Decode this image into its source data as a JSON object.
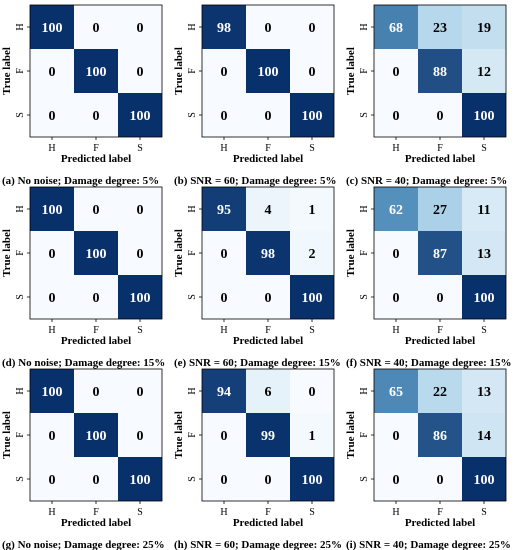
{
  "chart_data": [
    {
      "type": "heatmap",
      "caption": "(a) No noise; Damage degree: 5%",
      "xlabel": "Predicted label",
      "ylabel": "True label",
      "x_categories": [
        "H",
        "F",
        "S"
      ],
      "y_categories": [
        "H",
        "F",
        "S"
      ],
      "vlim": [
        0,
        100
      ],
      "values": [
        [
          100,
          0,
          0
        ],
        [
          0,
          100,
          0
        ],
        [
          0,
          0,
          100
        ]
      ]
    },
    {
      "type": "heatmap",
      "caption": "(b) SNR = 60; Damage degree: 5%",
      "xlabel": "Predicted label",
      "ylabel": "True label",
      "x_categories": [
        "H",
        "F",
        "S"
      ],
      "y_categories": [
        "H",
        "F",
        "S"
      ],
      "vlim": [
        0,
        100
      ],
      "values": [
        [
          98,
          0,
          0
        ],
        [
          0,
          100,
          0
        ],
        [
          0,
          0,
          100
        ]
      ]
    },
    {
      "type": "heatmap",
      "caption": "(c) SNR = 40; Damage degree: 5%",
      "xlabel": "Predicted label",
      "ylabel": "True label",
      "x_categories": [
        "H",
        "F",
        "S"
      ],
      "y_categories": [
        "H",
        "F",
        "S"
      ],
      "vlim": [
        0,
        100
      ],
      "values": [
        [
          68,
          23,
          19
        ],
        [
          0,
          88,
          12
        ],
        [
          0,
          0,
          100
        ]
      ]
    },
    {
      "type": "heatmap",
      "caption": "(d) No noise; Damage degree: 15%",
      "xlabel": "Predicted label",
      "ylabel": "True label",
      "x_categories": [
        "H",
        "F",
        "S"
      ],
      "y_categories": [
        "H",
        "F",
        "S"
      ],
      "vlim": [
        0,
        100
      ],
      "values": [
        [
          100,
          0,
          0
        ],
        [
          0,
          100,
          0
        ],
        [
          0,
          0,
          100
        ]
      ]
    },
    {
      "type": "heatmap",
      "caption": "(e) SNR = 60; Damage degree: 15%",
      "xlabel": "Predicted label",
      "ylabel": "True label",
      "x_categories": [
        "H",
        "F",
        "S"
      ],
      "y_categories": [
        "H",
        "F",
        "S"
      ],
      "vlim": [
        0,
        100
      ],
      "values": [
        [
          95,
          4,
          1
        ],
        [
          0,
          98,
          2
        ],
        [
          0,
          0,
          100
        ]
      ]
    },
    {
      "type": "heatmap",
      "caption": "(f) SNR = 40; Damage degree: 15%",
      "xlabel": "Predicted label",
      "ylabel": "True label",
      "x_categories": [
        "H",
        "F",
        "S"
      ],
      "y_categories": [
        "H",
        "F",
        "S"
      ],
      "vlim": [
        0,
        100
      ],
      "values": [
        [
          62,
          27,
          11
        ],
        [
          0,
          87,
          13
        ],
        [
          0,
          0,
          100
        ]
      ]
    },
    {
      "type": "heatmap",
      "caption": "(g) No noise; Damage degree: 25%",
      "xlabel": "Predicted label",
      "ylabel": "True label",
      "x_categories": [
        "H",
        "F",
        "S"
      ],
      "y_categories": [
        "H",
        "F",
        "S"
      ],
      "vlim": [
        0,
        100
      ],
      "values": [
        [
          100,
          0,
          0
        ],
        [
          0,
          100,
          0
        ],
        [
          0,
          0,
          100
        ]
      ]
    },
    {
      "type": "heatmap",
      "caption": "(h) SNR = 60; Damage degree: 25%",
      "xlabel": "Predicted label",
      "ylabel": "True label",
      "x_categories": [
        "H",
        "F",
        "S"
      ],
      "y_categories": [
        "H",
        "F",
        "S"
      ],
      "vlim": [
        0,
        100
      ],
      "values": [
        [
          94,
          6,
          0
        ],
        [
          0,
          99,
          1
        ],
        [
          0,
          0,
          100
        ]
      ]
    },
    {
      "type": "heatmap",
      "caption": "(i) SNR = 40; Damage degree: 25%",
      "xlabel": "Predicted label",
      "ylabel": "True label",
      "x_categories": [
        "H",
        "F",
        "S"
      ],
      "y_categories": [
        "H",
        "F",
        "S"
      ],
      "vlim": [
        0,
        100
      ],
      "values": [
        [
          65,
          22,
          13
        ],
        [
          0,
          86,
          14
        ],
        [
          0,
          0,
          100
        ]
      ]
    }
  ],
  "colors": {
    "low": "#f7fbff",
    "mid": "#6baed6",
    "high": "#08306b",
    "dark_text": "#000000",
    "light_text": "#ffffff"
  }
}
